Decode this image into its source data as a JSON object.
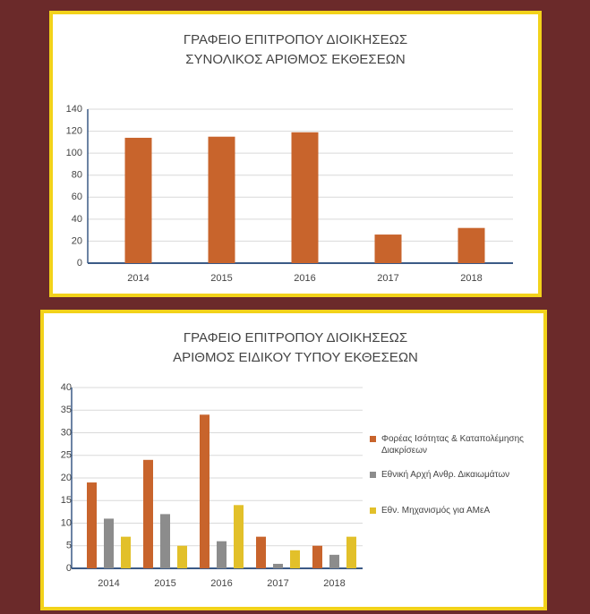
{
  "chart_data": [
    {
      "type": "bar",
      "title": "ΓΡΑΦΕΙΟ ΕΠΙΤΡΟΠΟΥ ΔΙΟΙΚΗΣΕΩΣ",
      "subtitle": "ΣΥΝΟΛΙΚΟΣ ΑΡΙΘΜΟΣ ΕΚΘΕΣΕΩΝ",
      "categories": [
        "2014",
        "2015",
        "2016",
        "2017",
        "2018"
      ],
      "series": [
        {
          "name": null,
          "color": "#c8642c",
          "values": [
            114,
            115,
            119,
            26,
            32
          ]
        }
      ],
      "ylim": [
        0,
        140
      ],
      "yticks": [
        0,
        20,
        40,
        60,
        80,
        100,
        120,
        140
      ],
      "grid": true
    },
    {
      "type": "bar",
      "title": "ΓΡΑΦΕΙΟ ΕΠΙΤΡΟΠΟΥ ΔΙΟΙΚΗΣΕΩΣ",
      "subtitle": "ΑΡΙΘΜΟΣ ΕΙΔΙΚΟΥ ΤΥΠΟΥ ΕΚΘΕΣΕΩΝ",
      "categories": [
        "2014",
        "2015",
        "2016",
        "2017",
        "2018"
      ],
      "series": [
        {
          "name": "Φορέας Ισότητας & Καταπολέμησης Διακρίσεων",
          "color": "#c8642c",
          "values": [
            19,
            24,
            34,
            7,
            5
          ]
        },
        {
          "name": "Εθνική Αρχή Ανθρ. Δικαιωμάτων",
          "color": "#8c8c8c",
          "values": [
            11,
            12,
            6,
            1,
            3
          ]
        },
        {
          "name": "Εθν. Μηχανισμός για ΑΜεΑ",
          "color": "#e2c02a",
          "values": [
            7,
            5,
            14,
            4,
            7
          ]
        }
      ],
      "ylim": [
        0,
        40
      ],
      "yticks": [
        0,
        5,
        10,
        15,
        20,
        25,
        30,
        35,
        40
      ],
      "grid": true,
      "legend": "right"
    }
  ]
}
